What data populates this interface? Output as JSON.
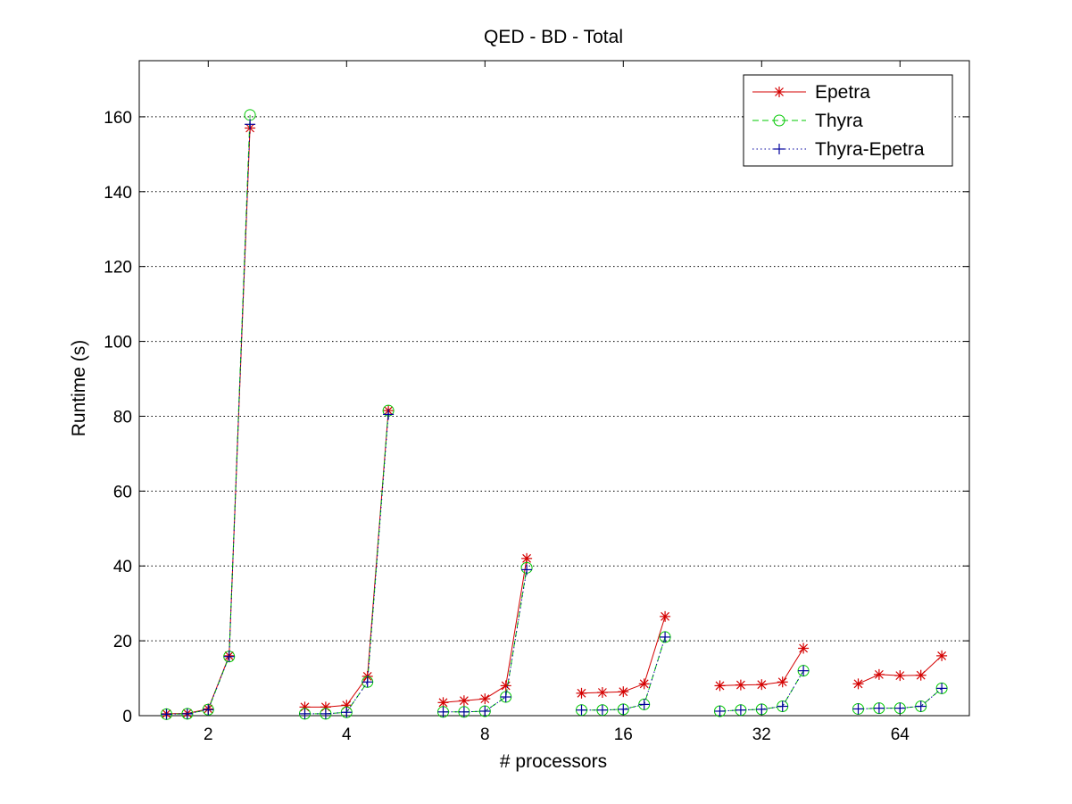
{
  "chart_data": {
    "type": "line",
    "title": "QED - BD - Total",
    "xlabel": "# processors",
    "ylabel": "Runtime (s)",
    "ylim": [
      0,
      175
    ],
    "yticks": [
      0,
      20,
      40,
      60,
      80,
      100,
      120,
      140,
      160
    ],
    "grid": "horizontal-dotted",
    "legend_position": "top-right",
    "categories": [
      "2",
      "4",
      "8",
      "16",
      "32",
      "64"
    ],
    "points_per_group": 5,
    "series": [
      {
        "name": "Epetra",
        "color": "#d40000",
        "marker": "asterisk",
        "dash": "solid",
        "groups": [
          [
            0.5,
            0.6,
            1.8,
            16.0,
            157.0
          ],
          [
            2.3,
            2.3,
            2.8,
            10.5,
            81.5
          ],
          [
            3.5,
            4.0,
            4.5,
            8.0,
            42.0
          ],
          [
            6.0,
            6.2,
            6.4,
            8.5,
            26.5
          ],
          [
            8.0,
            8.2,
            8.3,
            9.0,
            18.0
          ],
          [
            8.5,
            11.0,
            10.7,
            10.8,
            16.0
          ]
        ]
      },
      {
        "name": "Thyra",
        "color": "#00c800",
        "marker": "circle",
        "dash": "dashed",
        "groups": [
          [
            0.4,
            0.5,
            1.6,
            15.8,
            160.5
          ],
          [
            0.5,
            0.5,
            0.9,
            9.0,
            81.5
          ],
          [
            1.0,
            1.0,
            1.2,
            5.0,
            39.5
          ],
          [
            1.5,
            1.5,
            1.7,
            3.0,
            21.0
          ],
          [
            1.2,
            1.5,
            1.7,
            2.5,
            12.0
          ],
          [
            1.8,
            2.0,
            2.0,
            2.5,
            7.3
          ]
        ]
      },
      {
        "name": "Thyra-Epetra",
        "color": "#00009c",
        "marker": "plus",
        "dash": "dotted",
        "groups": [
          [
            0.4,
            0.5,
            1.6,
            15.8,
            158.0
          ],
          [
            0.5,
            0.5,
            0.9,
            9.0,
            80.5
          ],
          [
            1.0,
            1.0,
            1.2,
            5.0,
            39.0
          ],
          [
            1.5,
            1.5,
            1.7,
            3.0,
            21.0
          ],
          [
            1.2,
            1.5,
            1.7,
            2.5,
            12.0
          ],
          [
            1.8,
            2.0,
            2.0,
            2.5,
            7.3
          ]
        ]
      }
    ]
  }
}
